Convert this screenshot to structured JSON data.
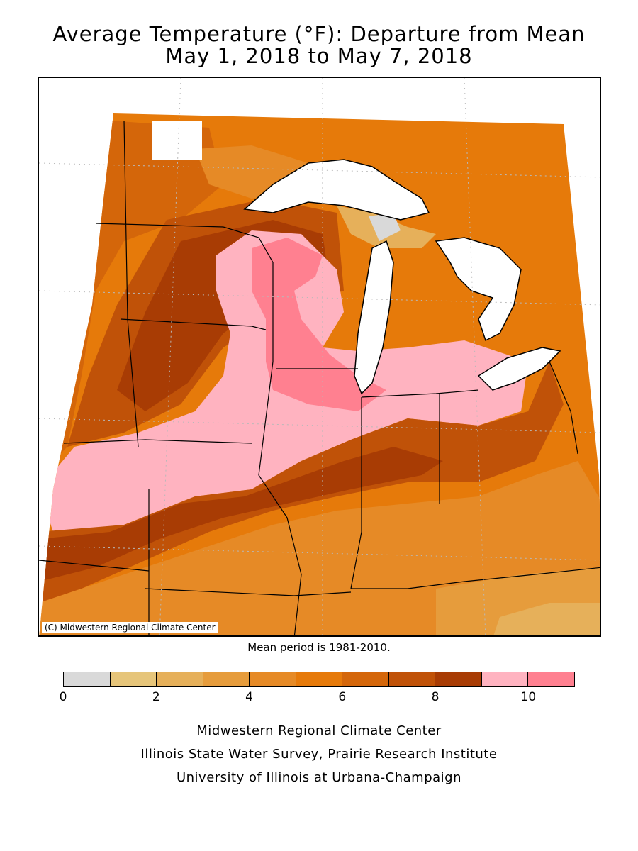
{
  "title_line1": "Average Temperature (°F): Departure from Mean",
  "title_line2": "May 1, 2018 to May 7, 2018",
  "map": {
    "copyright": "(C) Midwestern Regional Climate Center",
    "region": "Midwest United States",
    "colors": {
      "lake": "#ffffff",
      "border": "#000000",
      "graticule": "#b9b9b9"
    }
  },
  "mean_period": "Mean period is 1981-2010.",
  "legend": {
    "colors": [
      "#d9d9d9",
      "#e6c57a",
      "#e6b05a",
      "#e69c3c",
      "#e68a26",
      "#e67a0a",
      "#d4660a",
      "#c05208",
      "#a83c04",
      "#ffb3c0",
      "#ff8090"
    ],
    "ticks": [
      "0",
      "2",
      "4",
      "6",
      "8",
      "10"
    ]
  },
  "credits": {
    "line1": "Midwestern Regional Climate Center",
    "line2": "Illinois State Water Survey, Prairie Research Institute",
    "line3": "University of Illinois at Urbana-Champaign"
  }
}
